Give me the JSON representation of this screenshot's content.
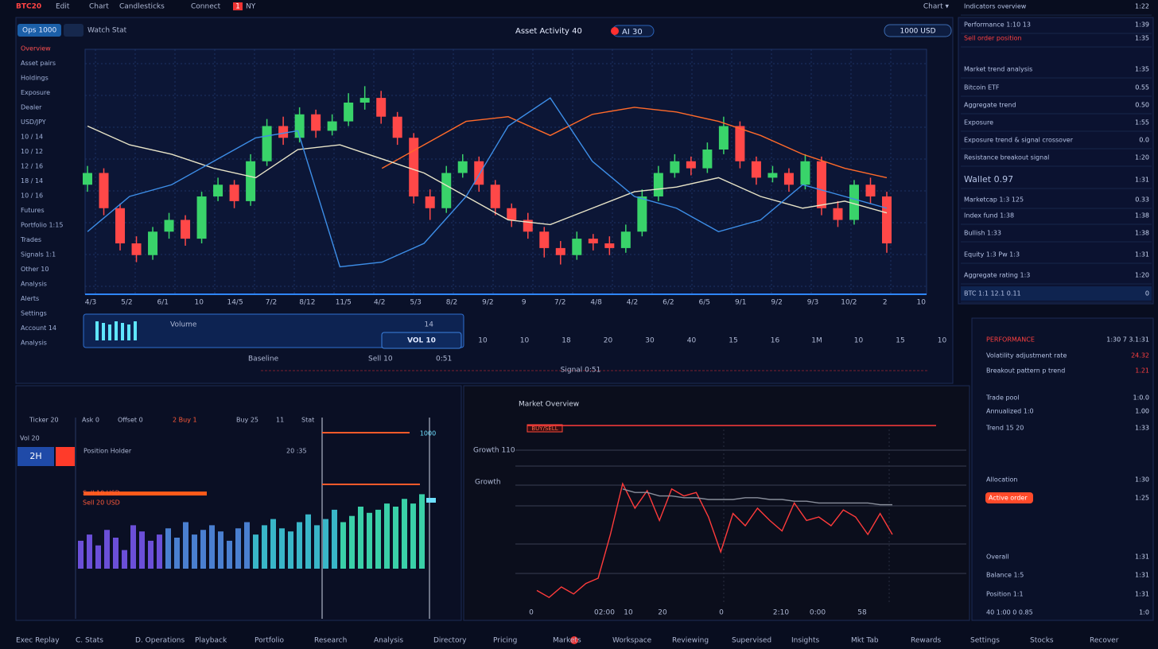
{
  "top_bar": {
    "logo": "BTC20",
    "menu": [
      "Edit",
      "Chart",
      "Candlesticks"
    ],
    "status": "Connect",
    "badge": "1",
    "zone": "NY",
    "right": "Chart ▾"
  },
  "header": {
    "tab": "Ops 1000",
    "menu": "Watch Stat",
    "title": "Asset Activity 40",
    "badge": "AI 30",
    "balance": "1000 USD"
  },
  "sidebar": [
    "Overview",
    "Asset pairs",
    "Holdings",
    "Exposure",
    "Dealer",
    "USD/JPY",
    "10 / 14",
    "10 / 12",
    "12 / 16",
    "18 / 14",
    "10 / 16",
    "Futures",
    "Portfolio 1:15",
    "Trades",
    "Signals 1:1",
    "Other 10",
    "Analysis",
    "Alerts",
    "Settings",
    "Account 14",
    "Analysis"
  ],
  "main_chart": {
    "type": "candlestick",
    "ylim": [
      0,
      100
    ],
    "up_color": "#39d36a",
    "down_color": "#ff4848",
    "candles": [
      [
        45,
        53,
        42,
        50
      ],
      [
        50,
        52,
        32,
        35
      ],
      [
        35,
        37,
        17,
        20
      ],
      [
        20,
        23,
        12,
        15
      ],
      [
        15,
        27,
        13,
        25
      ],
      [
        25,
        33,
        22,
        30
      ],
      [
        30,
        32,
        19,
        22
      ],
      [
        22,
        42,
        20,
        40
      ],
      [
        40,
        48,
        38,
        45
      ],
      [
        45,
        47,
        35,
        38
      ],
      [
        38,
        58,
        36,
        55
      ],
      [
        55,
        73,
        53,
        70
      ],
      [
        70,
        74,
        62,
        65
      ],
      [
        65,
        78,
        63,
        75
      ],
      [
        75,
        77,
        65,
        68
      ],
      [
        68,
        75,
        66,
        72
      ],
      [
        72,
        84,
        70,
        80
      ],
      [
        80,
        87,
        77,
        82
      ],
      [
        82,
        85,
        71,
        74
      ],
      [
        74,
        76,
        62,
        65
      ],
      [
        65,
        67,
        37,
        40
      ],
      [
        40,
        43,
        30,
        35
      ],
      [
        35,
        53,
        33,
        50
      ],
      [
        50,
        58,
        48,
        55
      ],
      [
        55,
        57,
        42,
        45
      ],
      [
        45,
        47,
        32,
        35
      ],
      [
        35,
        37,
        27,
        30
      ],
      [
        30,
        33,
        22,
        25
      ],
      [
        25,
        27,
        14,
        18
      ],
      [
        18,
        21,
        11,
        15
      ],
      [
        15,
        25,
        13,
        22
      ],
      [
        22,
        24,
        17,
        20
      ],
      [
        20,
        23,
        15,
        18
      ],
      [
        18,
        28,
        16,
        25
      ],
      [
        25,
        43,
        23,
        40
      ],
      [
        40,
        53,
        38,
        50
      ],
      [
        50,
        58,
        48,
        55
      ],
      [
        55,
        57,
        49,
        52
      ],
      [
        52,
        63,
        50,
        60
      ],
      [
        60,
        74,
        58,
        70
      ],
      [
        70,
        72,
        52,
        55
      ],
      [
        55,
        57,
        45,
        48
      ],
      [
        48,
        53,
        46,
        50
      ],
      [
        50,
        52,
        42,
        45
      ],
      [
        45,
        58,
        43,
        55
      ],
      [
        55,
        57,
        32,
        35
      ],
      [
        35,
        38,
        27,
        30
      ],
      [
        30,
        47,
        28,
        45
      ],
      [
        45,
        48,
        37,
        40
      ],
      [
        40,
        42,
        16,
        20
      ]
    ],
    "lines": [
      {
        "color": "#ff6a2a",
        "values": [
          null,
          null,
          null,
          null,
          null,
          null,
          null,
          52,
          62,
          72,
          74,
          66,
          75,
          78,
          76,
          72,
          66,
          58,
          52,
          48
        ]
      },
      {
        "color": "#e8e4c8",
        "values": [
          70,
          62,
          58,
          52,
          48,
          60,
          62,
          56,
          50,
          40,
          30,
          28,
          35,
          42,
          44,
          48,
          40,
          35,
          38,
          33
        ]
      },
      {
        "color": "#3d8ee8",
        "values": [
          25,
          40,
          45,
          55,
          65,
          68,
          10,
          12,
          20,
          40,
          70,
          82,
          55,
          40,
          35,
          25,
          30,
          45,
          40,
          35
        ]
      }
    ],
    "x_labels": [
      "4/3",
      "5/2",
      "6/1",
      "10",
      "14/5",
      "7/2",
      "8/12",
      "11/5",
      "4/2",
      "5/3",
      "8/2",
      "9/2",
      "9",
      "7/2",
      "4/8",
      "4/2",
      "6/2",
      "6/5",
      "9/1",
      "9/2",
      "9/3",
      "10/2",
      "2",
      "10"
    ]
  },
  "volume_widget": {
    "label": "Volume",
    "value": "14",
    "button": "VOL 10"
  },
  "scale_row": [
    "10",
    "10",
    "18",
    "20",
    "30",
    "40",
    "15",
    "16",
    "1M",
    "10",
    "15",
    "10"
  ],
  "status_row": [
    "Baseline",
    "Sell 10",
    "0:51",
    "Signal 0:51"
  ],
  "right_panel": [
    {
      "label": "Indicators overview",
      "value": "1:22"
    },
    {
      "label": "Performance 1:10 13",
      "value": "1:39"
    },
    {
      "label": "Sell order position",
      "value": "1:35"
    },
    {
      "label": "Market trend analysis",
      "value": "1:35"
    },
    {
      "label": "Bitcoin ETF",
      "value": "0.55"
    },
    {
      "label": "Aggregate trend",
      "value": "0.50"
    },
    {
      "label": "Exposure",
      "value": "1:55"
    },
    {
      "label": "Exposure trend & signal crossover",
      "value": "0.0"
    },
    {
      "label": "Resistance breakout signal",
      "value": "1:20"
    },
    {
      "label": "Wallet 0.97",
      "value": "1:31"
    },
    {
      "label": "Marketcap 1:3 125",
      "value": "0.33"
    },
    {
      "label": "Index fund 1:38",
      "value": "1:38"
    },
    {
      "label": "Bullish 1:33",
      "value": "1:38"
    },
    {
      "label": "Equity 1:3 Pw 1:3",
      "value": "1:31"
    },
    {
      "label": "Aggregate rating 1:3",
      "value": "1:20"
    },
    {
      "label": "BTC 1:1 12.1 0.11",
      "value": "0"
    },
    {
      "label": "PERFORMANCE",
      "value": "1:30 7 3.1:31"
    },
    {
      "label": "Volatility adjustment rate",
      "value": "24.32"
    },
    {
      "label": "Breakout pattern p trend",
      "value": "1.21"
    },
    {
      "label": "Trade pool",
      "value": "1:0.0"
    },
    {
      "label": "Annualized 1:0",
      "value": "1.00"
    },
    {
      "label": "Trend 15 20",
      "value": "1:33"
    },
    {
      "label": "Allocation",
      "value": "1:30"
    },
    {
      "label": "Active order",
      "value": "1:25"
    },
    {
      "label": "Overall",
      "value": "1:31"
    },
    {
      "label": "Balance 1:5",
      "value": "1:31"
    },
    {
      "label": "Position 1:1",
      "value": "1:31"
    },
    {
      "label": "40 1:00 0 0.85",
      "value": "1:0"
    }
  ],
  "order_book": {
    "type": "bar",
    "ylim": [
      0,
      100
    ],
    "colors": [
      "#6b4fd8",
      "#4a7fd0",
      "#39b6c8",
      "#3ad0a8"
    ],
    "values": [
      18,
      22,
      15,
      25,
      20,
      12,
      28,
      24,
      18,
      22,
      26,
      20,
      30,
      22,
      25,
      28,
      24,
      18,
      26,
      30,
      22,
      28,
      32,
      26,
      24,
      30,
      35,
      28,
      32,
      38,
      30,
      34,
      40,
      36,
      38,
      42,
      40,
      45,
      42,
      48
    ],
    "labels": [
      "Ticker 20",
      "Ask 0",
      "Offset 0",
      "2 Buy 1",
      "Buy 25",
      "11",
      "Stat",
      "Vol 20",
      "2H",
      "Position Holder",
      "20 :35",
      "Sell 10 USD",
      "Sell 20 USD",
      "1000"
    ]
  },
  "trend_chart": {
    "type": "line",
    "ylim": [
      0,
      100
    ],
    "title": "Market Overview",
    "labels": [
      "BUY/SELL",
      "Growth 110",
      "Growth"
    ],
    "series": [
      {
        "color": "#ff3b3b",
        "values": [
          8,
          4,
          10,
          6,
          12,
          15,
          40,
          69,
          55,
          65,
          48,
          66,
          62,
          64,
          50,
          30,
          52,
          45,
          55,
          48,
          42,
          58,
          48,
          50,
          45,
          54,
          50,
          40,
          52,
          40
        ]
      },
      {
        "color": "#8a8f9c",
        "values": [
          null,
          null,
          null,
          null,
          null,
          null,
          null,
          66,
          64,
          64,
          62,
          62,
          61,
          61,
          60,
          60,
          60,
          61,
          61,
          60,
          60,
          59,
          59,
          58,
          58,
          58,
          58,
          58,
          57,
          57
        ]
      }
    ],
    "x_labels": [
      "0",
      "02:00",
      "10",
      "20",
      "0",
      "2:10",
      "0:00",
      "58"
    ]
  },
  "footer": [
    "Exec Replay",
    "C. Stats",
    "D. Operations",
    "Playback",
    "Portfolio",
    "Research",
    "Analysis",
    "Directory",
    "Pricing",
    "Markets",
    "Workspace",
    "Reviewing",
    "Supervised",
    "Insights",
    "Mkt Tab",
    "Rewards",
    "Settings",
    "Stocks",
    "Recover"
  ]
}
